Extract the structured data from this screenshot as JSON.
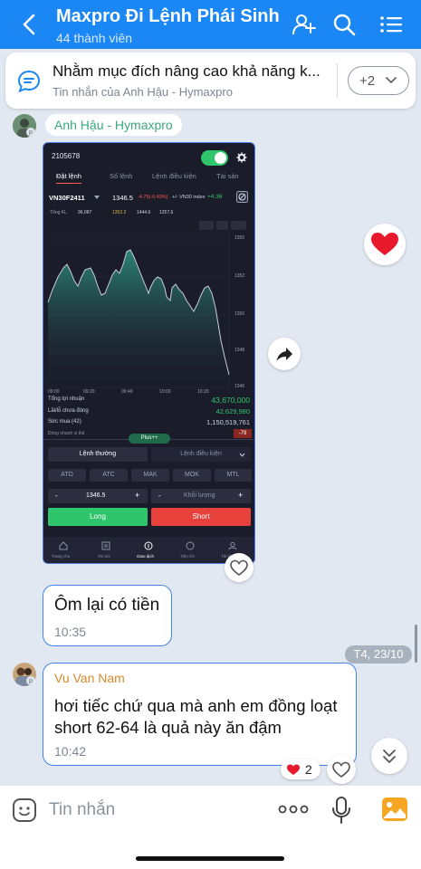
{
  "header": {
    "title": "Maxpro Đi Lệnh Phái Sinh",
    "subtitle": "44 thành viên",
    "icons": [
      "back-icon",
      "add-member-icon",
      "search-icon",
      "menu-list-icon"
    ]
  },
  "pinned": {
    "text": "Nhằm mục đích nâng cao khả năng k...",
    "sub": "Tin nhắn của Anh Hậu - Hymaxpro",
    "more_label": "+2"
  },
  "message1": {
    "sender": "Anh Hậu - Hymaxpro",
    "screenshot": {
      "account": "2105678",
      "tabs": [
        "Đặt lệnh",
        "Sổ lệnh",
        "Lệnh điều kiện",
        "Tài sản"
      ],
      "symbol": "VN30F2411",
      "price": "1346.5",
      "change": "-4.75(-0.43%)",
      "index_label": "+/- VN30 index",
      "index_change": "+4.36",
      "vol_label": "Tổng KL",
      "vol_value": "96,087",
      "ceil": "1352.2",
      "ref": "1444.6",
      "floor": "1257.6",
      "y_ticks": [
        "1355",
        "1352",
        "1350",
        "1348",
        "1346"
      ],
      "x_ticks": [
        "09:00",
        "09:20",
        "09:40",
        "10:00",
        "10:20"
      ],
      "rows": [
        {
          "label": "Tổng lợi nhuận",
          "value": "43,670,000",
          "color": "#2fc56a"
        },
        {
          "label": "Lãi/lỗ chưa đóng",
          "value": "42,629,980",
          "color": "#2fc56a"
        },
        {
          "label": "Sức mua (42)",
          "value": "1,150,519,761",
          "color": "#cfd3e6"
        },
        {
          "label": "Đóng nhanh vị thế",
          "value": "-79",
          "color": "#ff5a4f"
        }
      ],
      "plus_label": "Plus++",
      "order_types": [
        "Lệnh thường",
        "Lệnh điều kiện"
      ],
      "order_chips": [
        "ATO",
        "ATC",
        "MAK",
        "MOK",
        "MTL"
      ],
      "price_input": "1346.5",
      "qty_placeholder": "Khối lượng",
      "long_label": "Long",
      "short_label": "Short",
      "nav": [
        "Trang chủ",
        "Tin tức",
        "Giao dịch",
        "Tiện ích",
        "Tài khoản"
      ],
      "colors": {
        "long": "#2fc56a",
        "short": "#e8403a",
        "chart_line": "#c9ccda",
        "chart_fill": "#2d8a7a"
      }
    }
  },
  "message2": {
    "text": "Ôm lại có tiền",
    "time": "10:35"
  },
  "date_divider": "T4, 23/10",
  "message3": {
    "sender": "Vu Van Nam",
    "text_line1": "hơi tiếc chứ qua mà anh em đồng loạt",
    "text_line2": "short 62-64 là quả này ăn đậm",
    "time": "10:42",
    "reaction_count": "2"
  },
  "composer": {
    "placeholder": "Tin nhắn"
  }
}
